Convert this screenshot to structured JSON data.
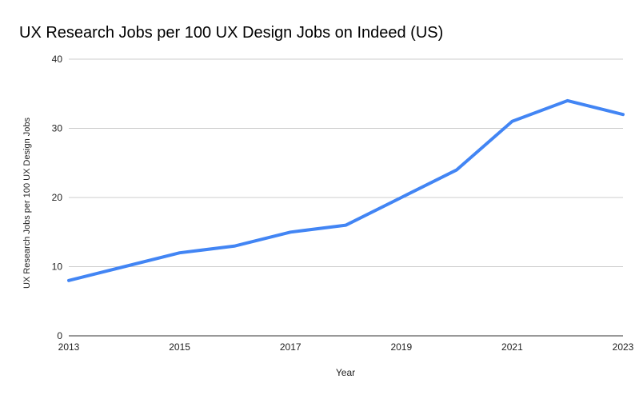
{
  "chart_data": {
    "type": "line",
    "title": "UX Research Jobs per 100 UX Design Jobs on Indeed (US)",
    "xlabel": "Year",
    "ylabel": "UX Research Jobs per 100 UX Design Jobs",
    "x": [
      2013,
      2014,
      2015,
      2016,
      2017,
      2018,
      2019,
      2020,
      2021,
      2022,
      2023
    ],
    "series": [
      {
        "values": [
          8,
          10,
          12,
          13,
          15,
          16,
          20,
          24,
          31,
          34,
          32
        ],
        "color": "#4285f4"
      }
    ],
    "xlim": [
      2013,
      2023
    ],
    "ylim": [
      0,
      40
    ],
    "x_ticks": [
      "2013",
      "2015",
      "2017",
      "2019",
      "2021",
      "2023"
    ],
    "x_tick_values": [
      2013,
      2015,
      2017,
      2019,
      2021,
      2023
    ],
    "y_ticks": [
      "0",
      "10",
      "20",
      "30",
      "40"
    ],
    "y_tick_values": [
      0,
      10,
      20,
      30,
      40
    ],
    "grid": true,
    "legend": "none"
  }
}
